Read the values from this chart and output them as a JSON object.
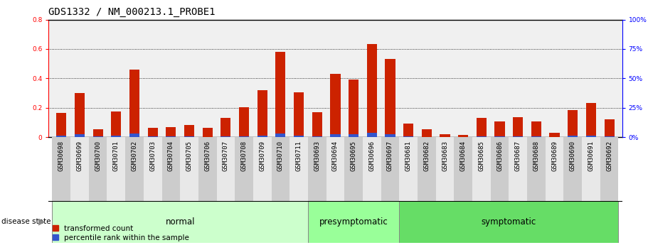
{
  "title": "GDS1332 / NM_000213.1_PROBE1",
  "samples": [
    "GSM30698",
    "GSM30699",
    "GSM30700",
    "GSM30701",
    "GSM30702",
    "GSM30703",
    "GSM30704",
    "GSM30705",
    "GSM30706",
    "GSM30707",
    "GSM30708",
    "GSM30709",
    "GSM30710",
    "GSM30711",
    "GSM30693",
    "GSM30694",
    "GSM30695",
    "GSM30696",
    "GSM30697",
    "GSM30681",
    "GSM30682",
    "GSM30683",
    "GSM30684",
    "GSM30685",
    "GSM30686",
    "GSM30687",
    "GSM30688",
    "GSM30689",
    "GSM30690",
    "GSM30691",
    "GSM30692"
  ],
  "transformed_count": [
    0.165,
    0.3,
    0.055,
    0.175,
    0.46,
    0.065,
    0.068,
    0.085,
    0.062,
    0.13,
    0.205,
    0.32,
    0.58,
    0.305,
    0.17,
    0.43,
    0.39,
    0.635,
    0.53,
    0.095,
    0.055,
    0.018,
    0.015,
    0.13,
    0.105,
    0.135,
    0.105,
    0.03,
    0.185,
    0.235,
    0.12
  ],
  "percentile_rank_left": [
    0.01,
    0.02,
    0.005,
    0.01,
    0.026,
    0.004,
    0.004,
    0.004,
    0.003,
    0.004,
    0.004,
    0.01,
    0.027,
    0.01,
    0.006,
    0.02,
    0.018,
    0.03,
    0.022,
    0.004,
    0.002,
    0.001,
    0.001,
    0.006,
    0.004,
    0.005,
    0.004,
    0.001,
    0.009,
    0.01,
    0.004
  ],
  "groups": [
    {
      "label": "normal",
      "start": 0,
      "end": 14,
      "color": "#ccffcc"
    },
    {
      "label": "presymptomatic",
      "start": 14,
      "end": 19,
      "color": "#99ff99"
    },
    {
      "label": "symptomatic",
      "start": 19,
      "end": 31,
      "color": "#66dd66"
    }
  ],
  "ylim_left": [
    0,
    0.8
  ],
  "ylim_right": [
    0,
    100
  ],
  "yticks_left": [
    0,
    0.2,
    0.4,
    0.6,
    0.8
  ],
  "yticks_right": [
    0,
    25,
    50,
    75,
    100
  ],
  "bar_color_red": "#cc2200",
  "bar_color_blue": "#3355cc",
  "bar_width": 0.55,
  "background_color": "#ffffff",
  "plot_bg_color": "#f0f0f0",
  "title_fontsize": 10,
  "tick_fontsize": 6.5,
  "label_fontsize": 8.5
}
